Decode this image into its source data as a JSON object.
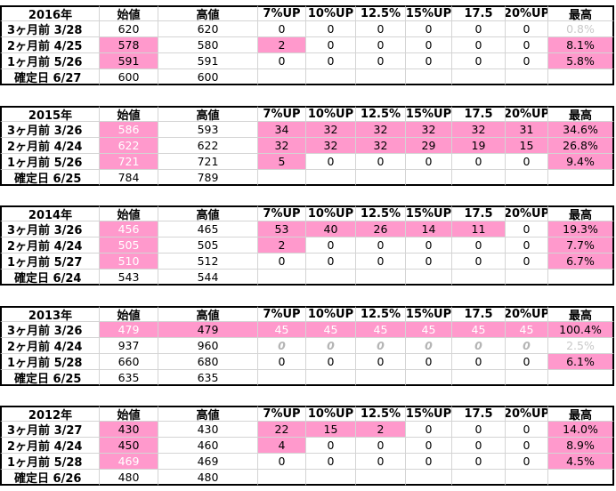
{
  "headers": [
    "始値",
    "高値",
    "7%UP",
    "10%UP",
    "12.5%",
    "15%UP",
    "17.5",
    "20%UP",
    "最高"
  ],
  "blocks": [
    {
      "year": "2016年",
      "rows": [
        {
          "label": "3ヶ月前  3/28",
          "values": [
            "620",
            "620",
            "0",
            "0",
            "0",
            "0",
            "0",
            "0",
            "0.8%"
          ],
          "hl": [
            0,
            0,
            0,
            0,
            0,
            0,
            0,
            0,
            0
          ],
          "style": [
            "n",
            "n",
            "n",
            "n",
            "n",
            "n",
            "n",
            "n",
            "lg"
          ]
        },
        {
          "label": "2ヶ月前  4/25",
          "values": [
            "578",
            "580",
            "2",
            "0",
            "0",
            "0",
            "0",
            "0",
            "8.1%"
          ],
          "hl": [
            1,
            0,
            1,
            0,
            0,
            0,
            0,
            0,
            1
          ],
          "style": [
            "n",
            "n",
            "n",
            "n",
            "n",
            "n",
            "n",
            "n",
            "n"
          ]
        },
        {
          "label": "1ヶ月前  5/26",
          "values": [
            "591",
            "591",
            "0",
            "0",
            "0",
            "0",
            "0",
            "0",
            "5.8%"
          ],
          "hl": [
            1,
            0,
            0,
            0,
            0,
            0,
            0,
            0,
            1
          ],
          "style": [
            "n",
            "n",
            "n",
            "n",
            "n",
            "n",
            "n",
            "n",
            "n"
          ]
        },
        {
          "label": "確定日  6/27",
          "values": [
            "600",
            "600",
            "",
            "",
            "",
            "",
            "",
            "",
            ""
          ],
          "hl": [
            0,
            0,
            0,
            0,
            0,
            0,
            0,
            0,
            0
          ],
          "style": [
            "n",
            "n",
            "n",
            "n",
            "n",
            "n",
            "n",
            "n",
            "n"
          ],
          "confirm": true
        }
      ]
    },
    {
      "year": "2015年",
      "rows": [
        {
          "label": "3ヶ月前  3/26",
          "values": [
            "586",
            "593",
            "34",
            "32",
            "32",
            "32",
            "32",
            "31",
            "34.6%"
          ],
          "hl": [
            1,
            0,
            1,
            1,
            1,
            1,
            1,
            1,
            1
          ],
          "style": [
            "w",
            "n",
            "n",
            "n",
            "n",
            "n",
            "n",
            "n",
            "n"
          ]
        },
        {
          "label": "2ヶ月前  4/24",
          "values": [
            "622",
            "622",
            "32",
            "32",
            "32",
            "29",
            "19",
            "15",
            "26.8%"
          ],
          "hl": [
            1,
            0,
            1,
            1,
            1,
            1,
            1,
            1,
            1
          ],
          "style": [
            "w",
            "n",
            "n",
            "n",
            "n",
            "n",
            "n",
            "n",
            "n"
          ]
        },
        {
          "label": "1ヶ月前  5/26",
          "values": [
            "721",
            "721",
            "5",
            "0",
            "0",
            "0",
            "0",
            "0",
            "9.4%"
          ],
          "hl": [
            1,
            0,
            1,
            0,
            0,
            0,
            0,
            0,
            1
          ],
          "style": [
            "w",
            "n",
            "n",
            "n",
            "n",
            "n",
            "n",
            "n",
            "n"
          ]
        },
        {
          "label": "確定日  6/25",
          "values": [
            "784",
            "789",
            "",
            "",
            "",
            "",
            "",
            "",
            ""
          ],
          "hl": [
            0,
            0,
            0,
            0,
            0,
            0,
            0,
            0,
            0
          ],
          "style": [
            "n",
            "n",
            "n",
            "n",
            "n",
            "n",
            "n",
            "n",
            "n"
          ],
          "confirm": true
        }
      ]
    },
    {
      "year": "2014年",
      "rows": [
        {
          "label": "3ヶ月前  3/26",
          "values": [
            "456",
            "465",
            "53",
            "40",
            "26",
            "14",
            "11",
            "0",
            "19.3%"
          ],
          "hl": [
            1,
            0,
            1,
            1,
            1,
            1,
            1,
            0,
            1
          ],
          "style": [
            "w",
            "n",
            "n",
            "n",
            "n",
            "n",
            "n",
            "n",
            "n"
          ]
        },
        {
          "label": "2ヶ月前  4/24",
          "values": [
            "505",
            "505",
            "2",
            "0",
            "0",
            "0",
            "0",
            "0",
            "7.7%"
          ],
          "hl": [
            1,
            0,
            1,
            0,
            0,
            0,
            0,
            0,
            1
          ],
          "style": [
            "w",
            "n",
            "n",
            "n",
            "n",
            "n",
            "n",
            "n",
            "n"
          ]
        },
        {
          "label": "1ヶ月前  5/27",
          "values": [
            "510",
            "512",
            "0",
            "0",
            "0",
            "0",
            "0",
            "0",
            "6.7%"
          ],
          "hl": [
            1,
            0,
            0,
            0,
            0,
            0,
            0,
            0,
            1
          ],
          "style": [
            "w",
            "n",
            "n",
            "n",
            "n",
            "n",
            "n",
            "n",
            "n"
          ]
        },
        {
          "label": "確定日  6/24",
          "values": [
            "543",
            "544",
            "",
            "",
            "",
            "",
            "",
            "",
            ""
          ],
          "hl": [
            0,
            0,
            0,
            0,
            0,
            0,
            0,
            0,
            0
          ],
          "style": [
            "n",
            "n",
            "n",
            "n",
            "n",
            "n",
            "n",
            "n",
            "n"
          ],
          "confirm": true
        }
      ]
    },
    {
      "year": "2013年",
      "rows": [
        {
          "label": "3ヶ月前  3/26",
          "values": [
            "479",
            "479",
            "45",
            "45",
            "45",
            "45",
            "45",
            "45",
            "100.4%"
          ],
          "hl": [
            1,
            1,
            1,
            1,
            1,
            1,
            1,
            1,
            1
          ],
          "style": [
            "w",
            "n",
            "w",
            "w",
            "w",
            "w",
            "w",
            "w",
            "n"
          ]
        },
        {
          "label": "2ヶ月前  4/24",
          "values": [
            "937",
            "960",
            "0",
            "0",
            "0",
            "0",
            "0",
            "0",
            "2.5%"
          ],
          "hl": [
            0,
            0,
            0,
            0,
            0,
            0,
            0,
            0,
            0
          ],
          "style": [
            "n",
            "n",
            "gi",
            "gi",
            "gi",
            "gi",
            "gi",
            "gi",
            "lg"
          ]
        },
        {
          "label": "1ヶ月前  5/28",
          "values": [
            "660",
            "680",
            "0",
            "0",
            "0",
            "0",
            "0",
            "0",
            "6.1%"
          ],
          "hl": [
            0,
            0,
            0,
            0,
            0,
            0,
            0,
            0,
            1
          ],
          "style": [
            "n",
            "n",
            "n",
            "n",
            "n",
            "n",
            "n",
            "n",
            "n"
          ]
        },
        {
          "label": "確定日  6/25",
          "values": [
            "635",
            "635",
            "",
            "",
            "",
            "",
            "",
            "",
            ""
          ],
          "hl": [
            0,
            0,
            0,
            0,
            0,
            0,
            0,
            0,
            0
          ],
          "style": [
            "n",
            "n",
            "n",
            "n",
            "n",
            "n",
            "n",
            "n",
            "n"
          ],
          "confirm": true
        }
      ]
    },
    {
      "year": "2012年",
      "rows": [
        {
          "label": "3ヶ月前  3/27",
          "values": [
            "430",
            "430",
            "22",
            "15",
            "2",
            "0",
            "0",
            "0",
            "14.0%"
          ],
          "hl": [
            1,
            0,
            1,
            1,
            1,
            0,
            0,
            0,
            1
          ],
          "style": [
            "n",
            "n",
            "n",
            "n",
            "n",
            "n",
            "n",
            "n",
            "n"
          ]
        },
        {
          "label": "2ヶ月前  4/24",
          "values": [
            "450",
            "460",
            "4",
            "0",
            "0",
            "0",
            "0",
            "0",
            "8.9%"
          ],
          "hl": [
            1,
            0,
            1,
            0,
            0,
            0,
            0,
            0,
            1
          ],
          "style": [
            "n",
            "n",
            "n",
            "n",
            "n",
            "n",
            "n",
            "n",
            "n"
          ]
        },
        {
          "label": "1ヶ月前  5/28",
          "values": [
            "469",
            "469",
            "0",
            "0",
            "0",
            "0",
            "0",
            "0",
            "4.5%"
          ],
          "hl": [
            1,
            0,
            0,
            0,
            0,
            0,
            0,
            0,
            1
          ],
          "style": [
            "w",
            "n",
            "n",
            "n",
            "n",
            "n",
            "n",
            "n",
            "n"
          ]
        },
        {
          "label": "確定日  6/26",
          "values": [
            "480",
            "480",
            "",
            "",
            "",
            "",
            "",
            "",
            ""
          ],
          "hl": [
            0,
            0,
            0,
            0,
            0,
            0,
            0,
            0,
            0
          ],
          "style": [
            "n",
            "n",
            "n",
            "n",
            "n",
            "n",
            "n",
            "n",
            "n"
          ],
          "confirm": true
        }
      ]
    }
  ],
  "colors": {
    "highlight": "#ff99cc",
    "grid": "#d4d4d4",
    "border": "#000000"
  }
}
